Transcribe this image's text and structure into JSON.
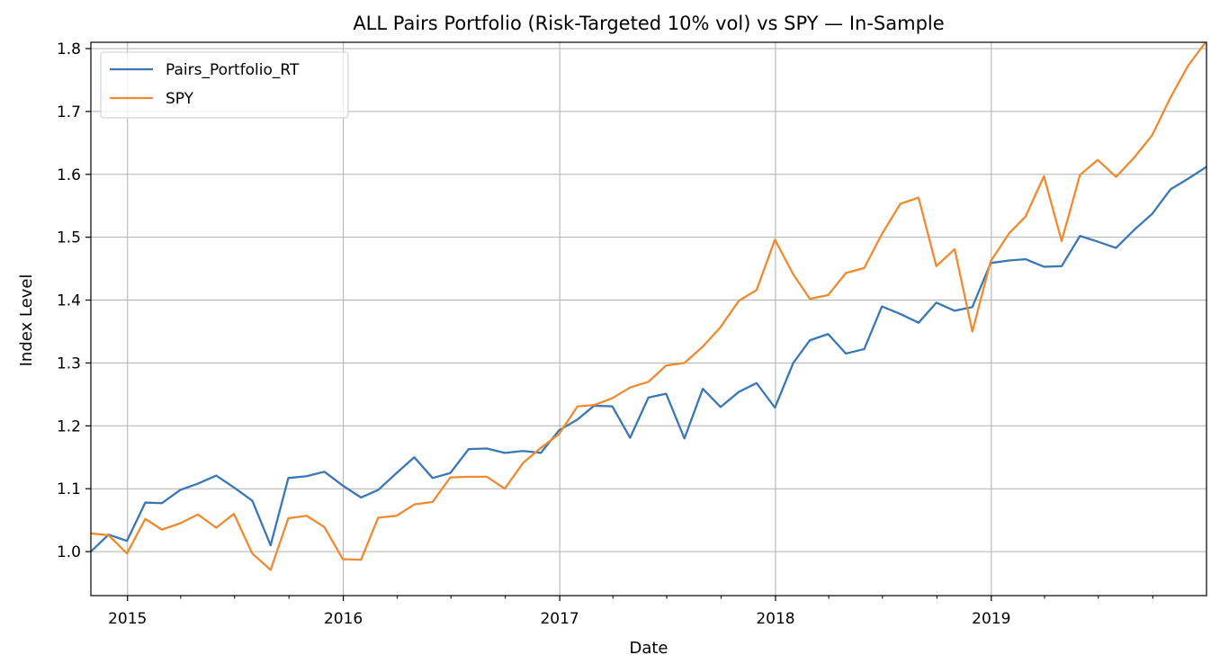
{
  "chart_data": {
    "type": "line",
    "title": "ALL Pairs Portfolio (Risk-Targeted 10% vol) vs SPY — In-Sample",
    "xlabel": "Date",
    "ylabel": "Index Level",
    "xlim": [
      "2014-10-31",
      "2019-12-31"
    ],
    "ylim": [
      0.93,
      1.81
    ],
    "grid": true,
    "legend_position": "upper left",
    "x_ticks": [
      "2015-01-01",
      "2016-01-01",
      "2017-01-01",
      "2018-01-01",
      "2019-01-01"
    ],
    "x_tick_labels": [
      "2015",
      "2016",
      "2017",
      "2018",
      "2019"
    ],
    "y_ticks": [
      1.0,
      1.1,
      1.2,
      1.3,
      1.4,
      1.5,
      1.6,
      1.7,
      1.8
    ],
    "y_tick_labels": [
      "1.0",
      "1.1",
      "1.2",
      "1.3",
      "1.4",
      "1.5",
      "1.6",
      "1.7",
      "1.8"
    ],
    "x": [
      "2014-10-31",
      "2014-11-30",
      "2014-12-31",
      "2015-01-31",
      "2015-02-28",
      "2015-03-31",
      "2015-04-30",
      "2015-05-31",
      "2015-06-30",
      "2015-07-31",
      "2015-08-31",
      "2015-09-30",
      "2015-10-31",
      "2015-11-30",
      "2015-12-31",
      "2016-01-31",
      "2016-02-29",
      "2016-03-31",
      "2016-04-30",
      "2016-05-31",
      "2016-06-30",
      "2016-07-31",
      "2016-08-31",
      "2016-09-30",
      "2016-10-31",
      "2016-11-30",
      "2016-12-31",
      "2017-01-31",
      "2017-02-28",
      "2017-03-31",
      "2017-04-30",
      "2017-05-31",
      "2017-06-30",
      "2017-07-31",
      "2017-08-31",
      "2017-09-30",
      "2017-10-31",
      "2017-11-30",
      "2017-12-31",
      "2018-01-31",
      "2018-02-28",
      "2018-03-31",
      "2018-04-30",
      "2018-05-31",
      "2018-06-30",
      "2018-07-31",
      "2018-08-31",
      "2018-09-30",
      "2018-10-31",
      "2018-11-30",
      "2018-12-31",
      "2019-01-31",
      "2019-02-28",
      "2019-03-31",
      "2019-04-30",
      "2019-05-31",
      "2019-06-30",
      "2019-07-31",
      "2019-08-31",
      "2019-09-30",
      "2019-10-31",
      "2019-11-30",
      "2019-12-31"
    ],
    "series": [
      {
        "name": "Pairs_Portfolio_RT",
        "color": "#3a78b5",
        "values": [
          1.0,
          1.027,
          1.017,
          1.078,
          1.077,
          1.098,
          1.108,
          1.121,
          1.102,
          1.081,
          1.01,
          1.117,
          1.12,
          1.127,
          1.105,
          1.086,
          1.098,
          1.125,
          1.15,
          1.117,
          1.125,
          1.163,
          1.164,
          1.157,
          1.16,
          1.157,
          1.193,
          1.21,
          1.232,
          1.231,
          1.181,
          1.245,
          1.251,
          1.18,
          1.259,
          1.23,
          1.254,
          1.268,
          1.229,
          1.3,
          1.336,
          1.346,
          1.315,
          1.322,
          1.39,
          1.378,
          1.364,
          1.396,
          1.383,
          1.389,
          1.459,
          1.463,
          1.465,
          1.453,
          1.454,
          1.502,
          1.493,
          1.483,
          1.512,
          1.537,
          1.576,
          1.593,
          1.612
        ]
      },
      {
        "name": "SPY",
        "color": "#f08a2f",
        "values": [
          1.029,
          1.026,
          0.997,
          1.052,
          1.035,
          1.045,
          1.059,
          1.038,
          1.06,
          0.997,
          0.971,
          1.053,
          1.057,
          1.039,
          0.988,
          0.987,
          1.054,
          1.057,
          1.075,
          1.079,
          1.118,
          1.119,
          1.119,
          1.1,
          1.141,
          1.165,
          1.187,
          1.231,
          1.233,
          1.244,
          1.261,
          1.27,
          1.296,
          1.3,
          1.326,
          1.357,
          1.399,
          1.416,
          1.496,
          1.441,
          1.402,
          1.408,
          1.443,
          1.451,
          1.505,
          1.553,
          1.563,
          1.454,
          1.481,
          1.35,
          1.462,
          1.506,
          1.533,
          1.597,
          1.494,
          1.599,
          1.623,
          1.596,
          1.627,
          1.662,
          1.722,
          1.773,
          1.812
        ]
      }
    ]
  }
}
